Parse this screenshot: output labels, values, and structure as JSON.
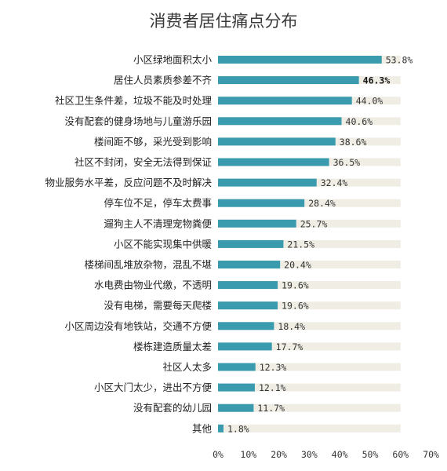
{
  "chart_data": {
    "type": "bar",
    "orientation": "horizontal",
    "title": "消费者居住痛点分布",
    "categories": [
      "小区绿地面积太小",
      "居住人员素质参差不齐",
      "社区卫生条件差，垃圾不能及时处理",
      "没有配套的健身场地与儿童游乐园",
      "楼间距不够，采光受到影响",
      "社区不封闭，安全无法得到保证",
      "物业服务水平差，反应问题不及时解决",
      "停车位不足，停车太费事",
      "遛狗主人不清理宠物粪便",
      "小区不能实现集中供暖",
      "楼梯间乱堆放杂物，混乱不堪",
      "水电费由物业代缴，不透明",
      "没有电梯，需要每天爬楼",
      "小区周边没有地铁站，交通不方便",
      "楼栋建造质量太差",
      "社区人太多",
      "小区大门太少，进出不方便",
      "没有配套的幼儿园",
      "其他"
    ],
    "values": [
      53.8,
      46.3,
      44.0,
      40.6,
      38.6,
      36.5,
      32.4,
      28.4,
      25.7,
      21.5,
      20.4,
      19.6,
      19.6,
      18.4,
      17.7,
      12.3,
      12.1,
      11.7,
      1.8
    ],
    "value_labels": [
      "53.8%",
      "46.3%",
      "44.0%",
      "40.6%",
      "38.6%",
      "36.5%",
      "32.4%",
      "28.4%",
      "25.7%",
      "21.5%",
      "20.4%",
      "19.6%",
      "19.6%",
      "18.4%",
      "17.7%",
      "12.3%",
      "12.1%",
      "11.7%",
      "1.8%"
    ],
    "highlighted_index": 1,
    "xlim": [
      0,
      70
    ],
    "background_track_max": 60,
    "x_ticks": [
      0,
      10,
      20,
      30,
      40,
      50,
      60,
      70
    ],
    "x_tick_labels": [
      "0%",
      "10%",
      "20%",
      "30%",
      "40%",
      "50%",
      "60%",
      "70%"
    ],
    "grid": false,
    "colors": {
      "bar": "#3a9aae",
      "track": "#efede4"
    }
  }
}
